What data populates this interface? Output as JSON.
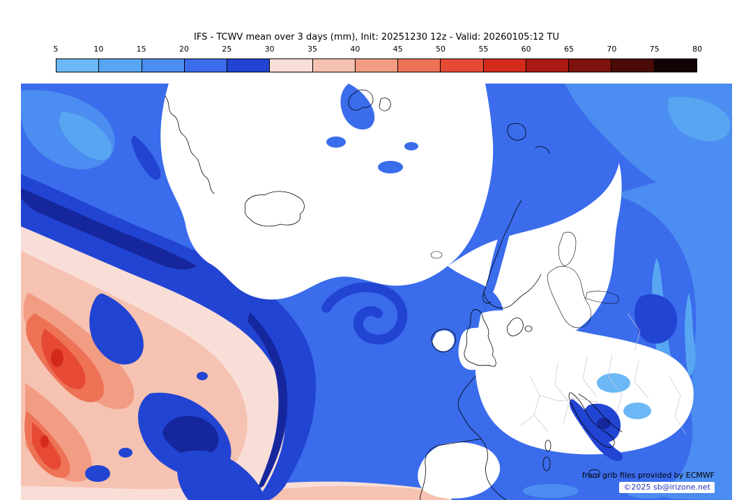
{
  "title": "IFS - TCWV mean over 3 days (mm), Init: 20251230 12z - Valid: 20260105:12 TU",
  "colorbar": {
    "levels": [
      5,
      10,
      15,
      20,
      25,
      30,
      35,
      40,
      45,
      50,
      55,
      60,
      65,
      70,
      75,
      80
    ],
    "colors": [
      "#6cb8f6",
      "#58a6f2",
      "#4b8df0",
      "#3a6cec",
      "#2244d2",
      "#f9ded7",
      "#f6c2b1",
      "#f29c84",
      "#ed7256",
      "#e64934",
      "#d42a1c",
      "#aa1a12",
      "#7e120c",
      "#4a0a06",
      "#120404"
    ]
  },
  "map": {
    "deep_blue": "#16279e",
    "low_value_fill": "#ffffff",
    "coastline_color": "#000000",
    "border_color": "#c3c3d0"
  },
  "attribution": {
    "line1": "from grib files provided by ECMWF",
    "line2": "©2025 sb@irizone.net"
  },
  "chart_data": {
    "type": "heatmap",
    "title": "IFS - TCWV mean over 3 days (mm)",
    "init": "20251230 12z",
    "valid": "20260105:12 TU",
    "units": "mm",
    "levels": [
      5,
      10,
      15,
      20,
      25,
      30,
      35,
      40,
      45,
      50,
      55,
      60,
      65,
      70,
      75,
      80
    ],
    "palette": [
      "#6cb8f6",
      "#58a6f2",
      "#4b8df0",
      "#3a6cec",
      "#2244d2",
      "#f9ded7",
      "#f6c2b1",
      "#f29c84",
      "#ed7256",
      "#e64934",
      "#d42a1c",
      "#aa1a12",
      "#7e120c",
      "#4a0a06",
      "#120404"
    ],
    "legend_position": "top",
    "region": "North Atlantic / Europe filled-contour field; dry (<5 mm) air shown white over the Norwegian Sea and Scandinavia, moist plume (30-60 mm) over the subtropical Atlantic (lower left)"
  }
}
